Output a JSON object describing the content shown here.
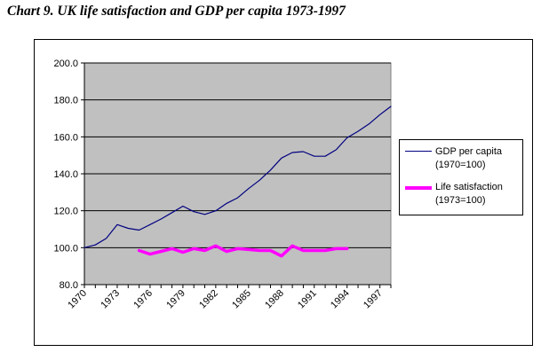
{
  "page_title": "Chart 9.  UK life satisfaction and GDP per capita 1973-1997",
  "chart_data": {
    "type": "line",
    "title": "Chart 9.  UK life satisfaction and GDP per capita 1973-1997",
    "xlabel": "",
    "ylabel": "",
    "ylim": [
      80,
      200
    ],
    "xlim": [
      1970,
      1998
    ],
    "yticks": [
      "80.0",
      "100.0",
      "120.0",
      "140.0",
      "160.0",
      "180.0",
      "200.0"
    ],
    "xticks": [
      "1970",
      "1973",
      "1976",
      "1979",
      "1982",
      "1985",
      "1988",
      "1991",
      "1994",
      "1997"
    ],
    "grid": "horizontal",
    "plot_background": "#c0c0c0",
    "legend_position": "right",
    "series": [
      {
        "name": "GDP per capita",
        "name_line2": "(1970=100)",
        "color": "#000080",
        "line": "thin",
        "x": [
          1970,
          1971,
          1972,
          1973,
          1974,
          1975,
          1976,
          1977,
          1978,
          1979,
          1980,
          1981,
          1982,
          1983,
          1984,
          1985,
          1986,
          1987,
          1988,
          1989,
          1990,
          1991,
          1992,
          1993,
          1994,
          1995,
          1996,
          1997,
          1998
        ],
        "values": [
          100.0,
          101.5,
          105.0,
          112.5,
          110.5,
          109.5,
          112.5,
          115.5,
          119.0,
          122.5,
          119.5,
          118.0,
          120.0,
          124.0,
          127.0,
          132.0,
          136.5,
          142.0,
          148.5,
          151.5,
          152.0,
          149.5,
          149.5,
          153.0,
          159.5,
          163.0,
          167.0,
          172.0,
          176.5
        ]
      },
      {
        "name": "Life satisfaction",
        "name_line2": "(1973=100)",
        "color": "#ff00ff",
        "line": "thick",
        "x": [
          1975,
          1976,
          1977,
          1978,
          1979,
          1980,
          1981,
          1982,
          1983,
          1984,
          1985,
          1986,
          1987,
          1988,
          1989,
          1990,
          1991,
          1992,
          1993,
          1994
        ],
        "values": [
          98.5,
          96.5,
          98.0,
          99.5,
          97.5,
          99.5,
          98.5,
          101.0,
          98.0,
          99.5,
          99.0,
          98.5,
          98.5,
          95.5,
          101.0,
          98.5,
          98.5,
          98.5,
          99.5,
          99.5
        ]
      }
    ]
  }
}
